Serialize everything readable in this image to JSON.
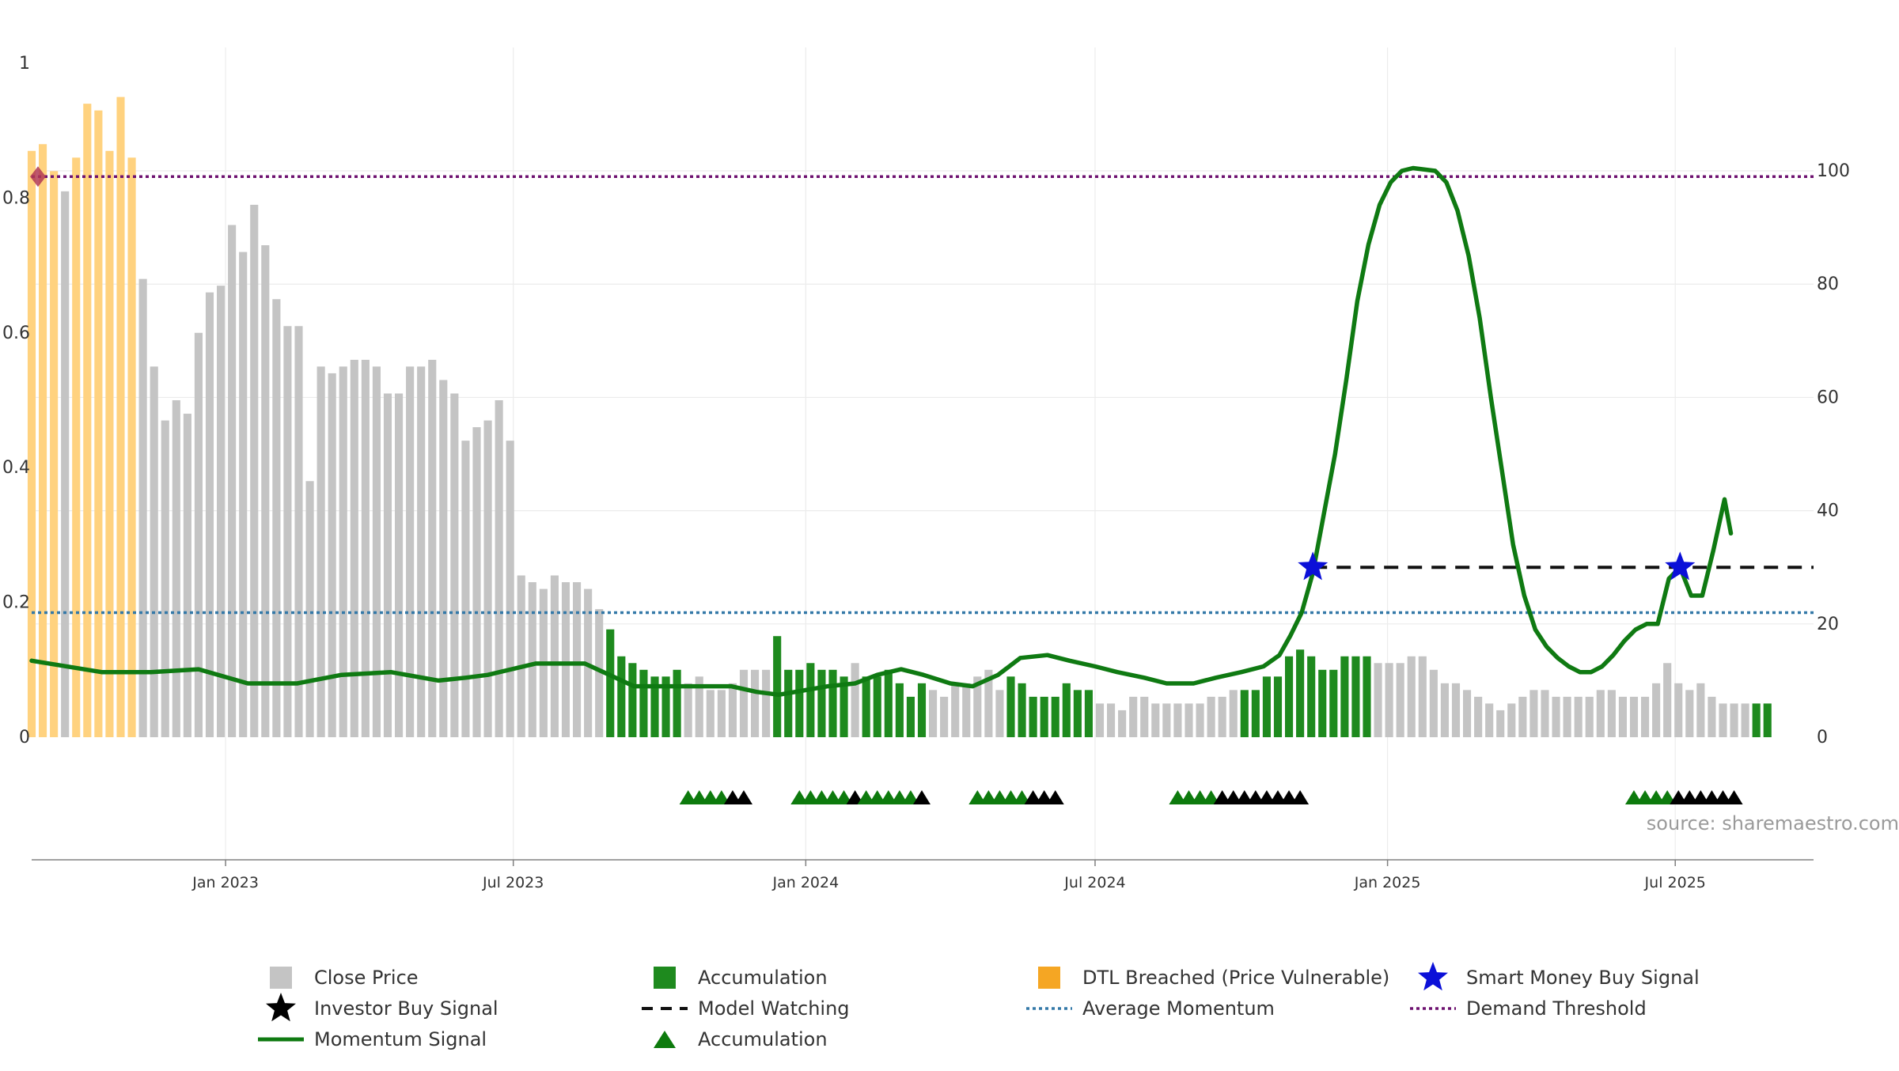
{
  "chart_data": {
    "type": "bar",
    "source_label": "source: sharemaestro.com",
    "left_axis": {
      "ticks": [
        "0",
        "0.2",
        "0.4",
        "0.6",
        "0.8",
        "1"
      ],
      "ylim": [
        0,
        1
      ]
    },
    "right_axis": {
      "ticks": [
        "0",
        "20",
        "40",
        "60",
        "80",
        "100"
      ],
      "ylim": [
        0,
        119
      ]
    },
    "x_ticks": [
      "Jan 2023",
      "Jul 2023",
      "Jan 2024",
      "Jul 2024",
      "Jan 2025",
      "Jul 2025"
    ],
    "x_range": [
      "2022-09-01",
      "2025-09-26"
    ],
    "x_tick_dates": [
      "2023-01-01",
      "2023-07-01",
      "2024-01-01",
      "2024-07-01",
      "2025-01-01",
      "2025-07-01"
    ],
    "bar_start_date": "2022-09-01",
    "bar_interval_days": 7,
    "close_price": [
      0.87,
      0.88,
      0.84,
      0.81,
      0.86,
      0.94,
      0.93,
      0.87,
      0.95,
      0.86,
      0.68,
      0.55,
      0.47,
      0.5,
      0.48,
      0.6,
      0.66,
      0.67,
      0.76,
      0.72,
      0.79,
      0.73,
      0.65,
      0.61,
      0.61,
      0.38,
      0.55,
      0.54,
      0.55,
      0.56,
      0.56,
      0.55,
      0.51,
      0.51,
      0.55,
      0.55,
      0.56,
      0.53,
      0.51,
      0.44,
      0.46,
      0.47,
      0.5,
      0.44,
      0.24,
      0.23,
      0.22,
      0.24,
      0.23,
      0.23,
      0.22,
      0.19,
      0.16,
      0.12,
      0.11,
      0.1,
      0.09,
      0.09,
      0.1,
      0.08,
      0.09,
      0.07,
      0.07,
      0.08,
      0.1,
      0.1,
      0.1,
      0.15,
      0.1,
      0.1,
      0.11,
      0.1,
      0.1,
      0.09,
      0.11,
      0.09,
      0.09,
      0.1,
      0.08,
      0.06,
      0.08,
      0.07,
      0.06,
      0.08,
      0.08,
      0.09,
      0.1,
      0.07,
      0.09,
      0.08,
      0.06,
      0.06,
      0.06,
      0.08,
      0.07,
      0.07,
      0.05,
      0.05,
      0.04,
      0.06,
      0.06,
      0.05,
      0.05,
      0.05,
      0.05,
      0.05,
      0.06,
      0.06,
      0.07,
      0.07,
      0.07,
      0.09,
      0.09,
      0.12,
      0.13,
      0.12,
      0.1,
      0.1,
      0.12,
      0.12,
      0.12,
      0.11,
      0.11,
      0.11,
      0.12,
      0.12,
      0.1,
      0.08,
      0.08,
      0.07,
      0.06,
      0.05,
      0.04,
      0.05,
      0.06,
      0.07,
      0.07,
      0.06,
      0.06,
      0.06,
      0.06,
      0.07,
      0.07,
      0.06,
      0.06,
      0.06,
      0.08,
      0.11,
      0.08,
      0.07,
      0.08,
      0.06,
      0.05,
      0.05,
      0.05,
      0.05,
      0.05
    ],
    "bar_state": "DDDCDDDDDDCCCCCCCCCCCCCCCCCCCCCCCCCCCCCCCCCCCCCCCCCCAAAAAAACCCCCCCCAAAAAAACAAAAAACCCCCCCAAAAAAAACCCCCCCCCCCCCAAAAAAAAAAAACCCCCCCCCCCCCCCCCCCCCCCCCCCCCCCCCCAAAAAAAAACCCCCC",
    "momentum_signal": [
      [
        "2022-09-01",
        13.5
      ],
      [
        "2022-10-15",
        11.5
      ],
      [
        "2022-11-15",
        11.5
      ],
      [
        "2022-12-15",
        12.0
      ],
      [
        "2023-01-15",
        9.5
      ],
      [
        "2023-02-15",
        9.5
      ],
      [
        "2023-03-15",
        11.0
      ],
      [
        "2023-04-15",
        11.5
      ],
      [
        "2023-05-15",
        10.0
      ],
      [
        "2023-06-01",
        10.5
      ],
      [
        "2023-06-15",
        11.0
      ],
      [
        "2023-07-15",
        13.0
      ],
      [
        "2023-08-15",
        13.0
      ],
      [
        "2023-09-15",
        9.0
      ],
      [
        "2023-10-15",
        9.0
      ],
      [
        "2023-11-15",
        9.0
      ],
      [
        "2023-12-01",
        8.0
      ],
      [
        "2023-12-15",
        7.5
      ],
      [
        "2024-01-15",
        9.0
      ],
      [
        "2024-02-01",
        9.5
      ],
      [
        "2024-02-15",
        11.0
      ],
      [
        "2024-03-01",
        12.0
      ],
      [
        "2024-03-15",
        11.0
      ],
      [
        "2024-04-01",
        9.5
      ],
      [
        "2024-04-15",
        9.0
      ],
      [
        "2024-05-01",
        11.0
      ],
      [
        "2024-05-15",
        14.0
      ],
      [
        "2024-06-01",
        14.5
      ],
      [
        "2024-06-15",
        13.5
      ],
      [
        "2024-07-01",
        12.5
      ],
      [
        "2024-07-15",
        11.5
      ],
      [
        "2024-08-01",
        10.5
      ],
      [
        "2024-08-15",
        9.5
      ],
      [
        "2024-09-01",
        9.5
      ],
      [
        "2024-09-15",
        10.5
      ],
      [
        "2024-10-01",
        11.5
      ],
      [
        "2024-10-15",
        12.5
      ],
      [
        "2024-10-25",
        14.5
      ],
      [
        "2024-11-01",
        18.0
      ],
      [
        "2024-11-08",
        22.0
      ],
      [
        "2024-11-15",
        29.0
      ],
      [
        "2024-11-29",
        50.0
      ],
      [
        "2024-12-06",
        63.0
      ],
      [
        "2024-12-13",
        77.0
      ],
      [
        "2024-12-20",
        87.0
      ],
      [
        "2024-12-27",
        94.0
      ],
      [
        "2025-01-03",
        98.0
      ],
      [
        "2025-01-10",
        100.0
      ],
      [
        "2025-01-17",
        100.5
      ],
      [
        "2025-01-31",
        100.0
      ],
      [
        "2025-02-07",
        98.0
      ],
      [
        "2025-02-14",
        93.0
      ],
      [
        "2025-02-21",
        85.0
      ],
      [
        "2025-02-28",
        74.0
      ],
      [
        "2025-03-07",
        60.0
      ],
      [
        "2025-03-14",
        47.0
      ],
      [
        "2025-03-21",
        34.0
      ],
      [
        "2025-03-28",
        25.0
      ],
      [
        "2025-04-04",
        19.0
      ],
      [
        "2025-04-11",
        16.0
      ],
      [
        "2025-04-18",
        14.0
      ],
      [
        "2025-04-25",
        12.5
      ],
      [
        "2025-05-02",
        11.5
      ],
      [
        "2025-05-09",
        11.5
      ],
      [
        "2025-05-16",
        12.5
      ],
      [
        "2025-05-23",
        14.5
      ],
      [
        "2025-05-30",
        17.0
      ],
      [
        "2025-06-06",
        19.0
      ],
      [
        "2025-06-13",
        20.0
      ],
      [
        "2025-06-20",
        20.0
      ],
      [
        "2025-06-27",
        28.0
      ],
      [
        "2025-07-04",
        30.0
      ],
      [
        "2025-07-11",
        25.0
      ],
      [
        "2025-07-18",
        25.0
      ],
      [
        "2025-07-25",
        33.0
      ],
      [
        "2025-08-01",
        42.0
      ],
      [
        "2025-08-05",
        36.0
      ]
    ],
    "average_momentum": 22,
    "demand_threshold": 99,
    "model_watching": {
      "start": "2024-11-15",
      "end": "2025-09-26",
      "value": 30
    },
    "smart_money_buy_signals": [
      [
        "2024-11-15",
        30
      ],
      [
        "2025-07-04",
        30
      ]
    ],
    "demand_marker": {
      "date": "2022-09-01",
      "value": 99
    },
    "signal_markers": [
      [
        "2023-10-19",
        "acc"
      ],
      [
        "2023-10-26",
        "acc"
      ],
      [
        "2023-11-02",
        "acc"
      ],
      [
        "2023-11-09",
        "acc"
      ],
      [
        "2023-11-16",
        "inv"
      ],
      [
        "2023-11-23",
        "inv"
      ],
      [
        "2023-12-28",
        "acc"
      ],
      [
        "2024-01-04",
        "acc"
      ],
      [
        "2024-01-11",
        "acc"
      ],
      [
        "2024-01-18",
        "acc"
      ],
      [
        "2024-01-25",
        "acc"
      ],
      [
        "2024-02-01",
        "inv"
      ],
      [
        "2024-02-08",
        "acc"
      ],
      [
        "2024-02-15",
        "acc"
      ],
      [
        "2024-02-22",
        "acc"
      ],
      [
        "2024-02-29",
        "acc"
      ],
      [
        "2024-03-07",
        "acc"
      ],
      [
        "2024-03-14",
        "inv"
      ],
      [
        "2024-04-18",
        "acc"
      ],
      [
        "2024-04-25",
        "acc"
      ],
      [
        "2024-05-02",
        "acc"
      ],
      [
        "2024-05-09",
        "acc"
      ],
      [
        "2024-05-16",
        "acc"
      ],
      [
        "2024-05-23",
        "inv"
      ],
      [
        "2024-05-30",
        "inv"
      ],
      [
        "2024-06-06",
        "inv"
      ],
      [
        "2024-08-22",
        "acc"
      ],
      [
        "2024-08-29",
        "acc"
      ],
      [
        "2024-09-05",
        "acc"
      ],
      [
        "2024-09-12",
        "acc"
      ],
      [
        "2024-09-19",
        "inv"
      ],
      [
        "2024-09-26",
        "inv"
      ],
      [
        "2024-10-03",
        "inv"
      ],
      [
        "2024-10-10",
        "inv"
      ],
      [
        "2024-10-17",
        "inv"
      ],
      [
        "2024-10-24",
        "inv"
      ],
      [
        "2024-10-31",
        "inv"
      ],
      [
        "2024-11-07",
        "inv"
      ],
      [
        "2025-06-05",
        "acc"
      ],
      [
        "2025-06-12",
        "acc"
      ],
      [
        "2025-06-19",
        "acc"
      ],
      [
        "2025-06-26",
        "acc"
      ],
      [
        "2025-07-03",
        "inv"
      ],
      [
        "2025-07-10",
        "inv"
      ],
      [
        "2025-07-17",
        "inv"
      ],
      [
        "2025-07-24",
        "inv"
      ],
      [
        "2025-07-31",
        "inv"
      ],
      [
        "2025-08-07",
        "inv"
      ]
    ],
    "legend": {
      "close_price": "Close Price",
      "accumulation": "Accumulation",
      "dtl_breached": "DTL Breached (Price Vulnerable)",
      "smart_money": "Smart Money Buy Signal",
      "investor_buy": "Investor Buy Signal",
      "model_watching": "Model Watching",
      "average_momentum": "Average Momentum",
      "demand_threshold": "Demand Threshold",
      "momentum_signal": "Momentum Signal",
      "accumulation_marker": "Accumulation"
    },
    "colors": {
      "close": "#c4c4c4",
      "accumulation": "#1e8a1e",
      "dtl": "#ffd27f",
      "momentum": "#0f7a12",
      "avg_momentum": "#3479a8",
      "demand": "#6e1270",
      "model_watching": "#111111",
      "smart_money": "#0b10d8",
      "acc_marker": "#0d7a0d",
      "inv_marker": "#000000",
      "demand_marker": "#b23a55",
      "grid": "#ececec",
      "axis": "#808080",
      "text": "#333333",
      "source": "#9a9a9a"
    }
  }
}
